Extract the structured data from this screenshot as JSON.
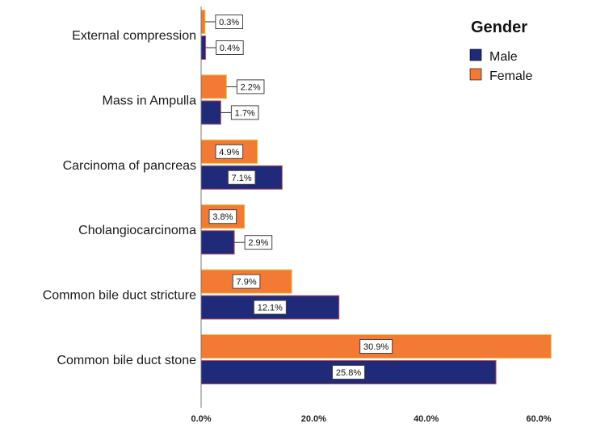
{
  "chart_data": {
    "type": "bar",
    "orientation": "horizontal",
    "title": "",
    "xlabel": "",
    "ylabel": "",
    "xlim": [
      0,
      72
    ],
    "categories": [
      "External compression",
      "Mass in Ampulla",
      "Carcinoma of pancreas",
      "Cholangiocarcinoma",
      "Common bile duct stricture",
      "Common bile duct stone"
    ],
    "series": [
      {
        "name": "Female",
        "color": "#F27A34",
        "values": [
          0.3,
          2.2,
          4.9,
          3.8,
          7.9,
          30.9
        ],
        "bar_length": [
          0.7,
          4.5,
          10.0,
          7.7,
          16.1,
          62.2
        ],
        "labels": [
          "0.3%",
          "2.2%",
          "4.9%",
          "3.8%",
          "7.9%",
          "30.9%"
        ]
      },
      {
        "name": "Male",
        "color": "#1F2A78",
        "values": [
          0.4,
          1.7,
          7.1,
          2.9,
          12.1,
          25.8
        ],
        "bar_length": [
          0.8,
          3.5,
          14.4,
          5.9,
          24.5,
          52.4
        ],
        "labels": [
          "0.4%",
          "1.7%",
          "7.1%",
          "2.9%",
          "12.1%",
          "25.8%"
        ]
      }
    ],
    "x_ticks": [
      {
        "value": 0,
        "label": "0.0%"
      },
      {
        "value": 20,
        "label": "20.0%"
      },
      {
        "value": 40,
        "label": "40.0%"
      },
      {
        "value": 60,
        "label": "60.0%"
      }
    ],
    "legend": {
      "title": "Gender",
      "position": "top-right",
      "entries": [
        {
          "name": "Male",
          "color": "#1F2A78"
        },
        {
          "name": "Female",
          "color": "#F27A34"
        }
      ]
    },
    "grid": false
  }
}
